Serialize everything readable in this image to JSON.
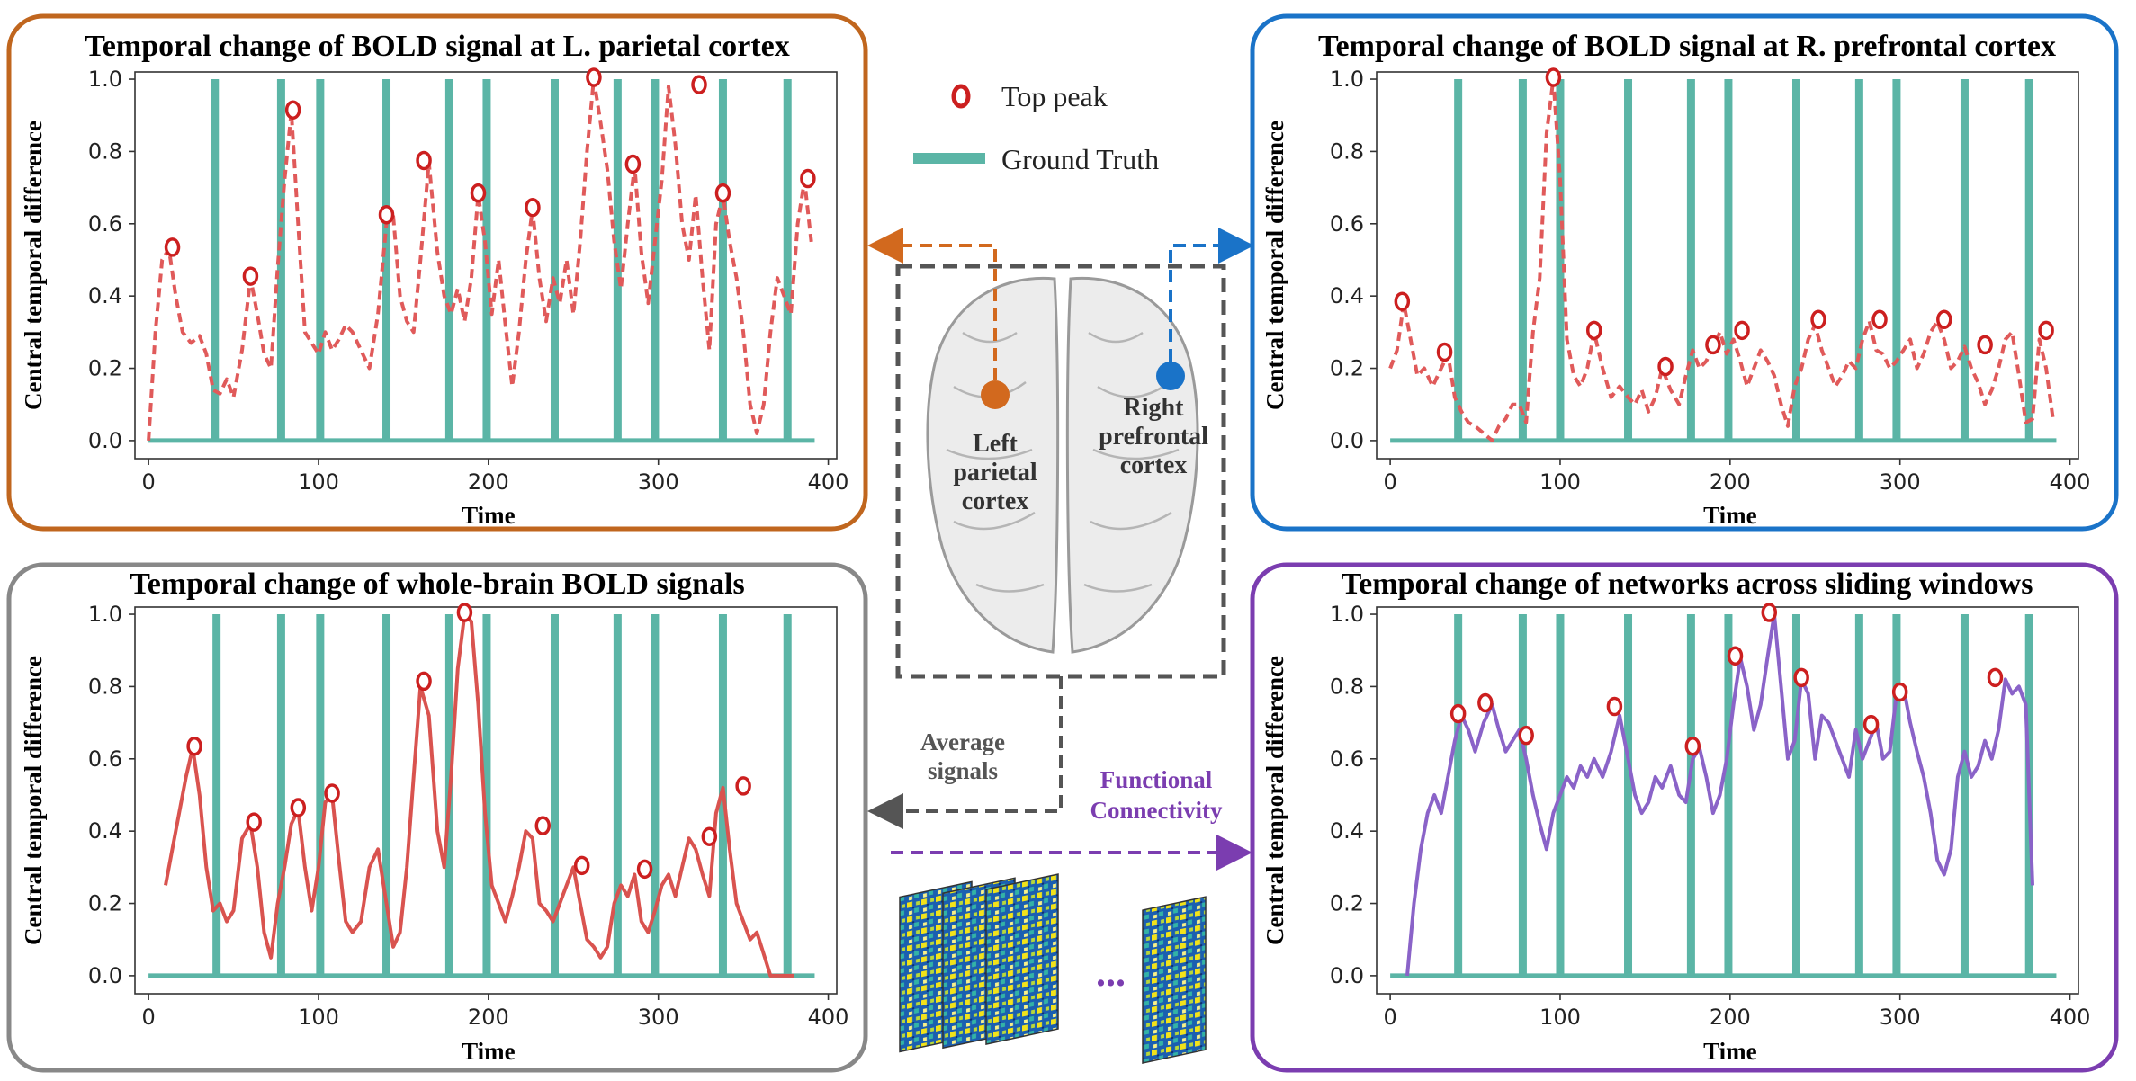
{
  "legend": {
    "peak_label": "Top peak",
    "gt_label": "Ground Truth",
    "colors": {
      "peak": "#cc1f1f",
      "gt": "#5bb5a6"
    }
  },
  "center": {
    "left_label": [
      "Left",
      "parietal",
      "cortex"
    ],
    "right_label": [
      "Right",
      "prefrontal",
      "cortex"
    ],
    "avg_label": [
      "Average",
      "signals"
    ],
    "fc_label": [
      "Functional",
      "Connectivity"
    ],
    "dots": "...",
    "colors": {
      "left": "#d2691e",
      "right": "#1a73c8",
      "avg": "#555555",
      "fc": "#7b3db0"
    }
  },
  "chart_data": [
    {
      "id": "tl",
      "type": "line",
      "title": "Temporal change of BOLD signal at L. parietal cortex",
      "xlabel": "Time",
      "ylabel": "Central temporal difference",
      "xlim": [
        -8,
        405
      ],
      "ylim": [
        -0.05,
        1.02
      ],
      "xticks": [
        0,
        100,
        200,
        300,
        400
      ],
      "yticks": [
        0.0,
        0.2,
        0.4,
        0.6,
        0.8,
        1.0
      ],
      "ground_truth": [
        39,
        78,
        101,
        140,
        177,
        199,
        239,
        276,
        298,
        338,
        376
      ],
      "gt_range": [
        0,
        392
      ],
      "line_style": "dashed",
      "line_color": "#e05a5a",
      "frame_color": "#c0661e",
      "series": {
        "x": [
          0,
          4,
          8,
          12,
          16,
          20,
          25,
          30,
          34,
          38,
          42,
          46,
          50,
          55,
          60,
          64,
          68,
          72,
          76,
          80,
          84,
          88,
          92,
          96,
          100,
          104,
          108,
          112,
          116,
          120,
          125,
          130,
          135,
          140,
          144,
          148,
          152,
          156,
          160,
          165,
          170,
          174,
          178,
          182,
          186,
          190,
          194,
          198,
          202,
          206,
          210,
          214,
          218,
          222,
          226,
          230,
          234,
          238,
          242,
          246,
          250,
          254,
          258,
          262,
          266,
          270,
          274,
          278,
          282,
          286,
          290,
          294,
          298,
          302,
          306,
          310,
          314,
          318,
          322,
          326,
          330,
          334,
          338,
          342,
          346,
          350,
          354,
          358,
          362,
          366,
          370,
          374,
          378,
          382,
          386,
          390
        ],
        "y": [
          0.0,
          0.3,
          0.5,
          0.53,
          0.4,
          0.3,
          0.27,
          0.29,
          0.24,
          0.14,
          0.13,
          0.17,
          0.12,
          0.25,
          0.45,
          0.35,
          0.24,
          0.2,
          0.48,
          0.72,
          0.91,
          0.6,
          0.3,
          0.27,
          0.24,
          0.3,
          0.25,
          0.28,
          0.32,
          0.3,
          0.25,
          0.2,
          0.35,
          0.6,
          0.62,
          0.4,
          0.33,
          0.3,
          0.5,
          0.77,
          0.52,
          0.4,
          0.35,
          0.42,
          0.33,
          0.45,
          0.68,
          0.55,
          0.35,
          0.5,
          0.32,
          0.15,
          0.3,
          0.5,
          0.64,
          0.45,
          0.33,
          0.45,
          0.38,
          0.5,
          0.35,
          0.55,
          0.8,
          1.0,
          0.88,
          0.75,
          0.55,
          0.42,
          0.6,
          0.76,
          0.52,
          0.38,
          0.55,
          0.72,
          0.98,
          0.82,
          0.6,
          0.5,
          0.68,
          0.45,
          0.25,
          0.6,
          0.68,
          0.55,
          0.45,
          0.3,
          0.1,
          0.02,
          0.1,
          0.3,
          0.45,
          0.4,
          0.35,
          0.6,
          0.72,
          0.55
        ]
      },
      "peaks": [
        [
          14,
          0.53
        ],
        [
          60,
          0.45
        ],
        [
          85,
          0.91
        ],
        [
          140,
          0.62
        ],
        [
          162,
          0.77
        ],
        [
          194,
          0.68
        ],
        [
          226,
          0.64
        ],
        [
          262,
          1.0
        ],
        [
          285,
          0.76
        ],
        [
          324,
          0.98
        ],
        [
          338,
          0.68
        ],
        [
          388,
          0.72
        ]
      ]
    },
    {
      "id": "tr",
      "type": "line",
      "title": "Temporal change of BOLD signal at R. prefrontal cortex",
      "xlabel": "Time",
      "ylabel": "Central temporal difference",
      "xlim": [
        -8,
        405
      ],
      "ylim": [
        -0.05,
        1.02
      ],
      "xticks": [
        0,
        100,
        200,
        300,
        400
      ],
      "yticks": [
        0.0,
        0.2,
        0.4,
        0.6,
        0.8,
        1.0
      ],
      "ground_truth": [
        40,
        78,
        100,
        140,
        177,
        199,
        239,
        276,
        298,
        338,
        376
      ],
      "gt_range": [
        0,
        392
      ],
      "line_style": "dashed",
      "line_color": "#e05a5a",
      "frame_color": "#1a73c8",
      "series": {
        "x": [
          0,
          4,
          8,
          12,
          16,
          20,
          25,
          30,
          34,
          38,
          42,
          46,
          50,
          55,
          60,
          64,
          68,
          72,
          76,
          80,
          84,
          88,
          92,
          96,
          100,
          104,
          108,
          112,
          116,
          120,
          125,
          130,
          135,
          140,
          144,
          148,
          152,
          156,
          160,
          165,
          170,
          174,
          178,
          182,
          186,
          190,
          194,
          198,
          202,
          206,
          210,
          214,
          218,
          222,
          226,
          230,
          234,
          238,
          242,
          246,
          250,
          254,
          258,
          262,
          266,
          270,
          274,
          278,
          282,
          286,
          290,
          294,
          298,
          302,
          306,
          310,
          314,
          318,
          322,
          326,
          330,
          334,
          338,
          342,
          346,
          350,
          354,
          358,
          362,
          366,
          370,
          374,
          378,
          382,
          386,
          390
        ],
        "y": [
          0.2,
          0.25,
          0.38,
          0.28,
          0.18,
          0.2,
          0.15,
          0.2,
          0.24,
          0.12,
          0.08,
          0.05,
          0.04,
          0.02,
          0.0,
          0.04,
          0.06,
          0.1,
          0.1,
          0.05,
          0.3,
          0.45,
          0.85,
          1.0,
          0.72,
          0.28,
          0.18,
          0.15,
          0.2,
          0.3,
          0.2,
          0.12,
          0.15,
          0.12,
          0.1,
          0.14,
          0.08,
          0.12,
          0.2,
          0.14,
          0.1,
          0.18,
          0.25,
          0.2,
          0.22,
          0.26,
          0.3,
          0.24,
          0.28,
          0.22,
          0.15,
          0.2,
          0.25,
          0.22,
          0.18,
          0.1,
          0.04,
          0.15,
          0.2,
          0.28,
          0.32,
          0.25,
          0.2,
          0.15,
          0.18,
          0.22,
          0.2,
          0.28,
          0.33,
          0.25,
          0.24,
          0.2,
          0.22,
          0.25,
          0.28,
          0.2,
          0.24,
          0.3,
          0.33,
          0.28,
          0.2,
          0.22,
          0.26,
          0.2,
          0.16,
          0.1,
          0.14,
          0.2,
          0.28,
          0.3,
          0.18,
          0.05,
          0.06,
          0.28,
          0.2,
          0.06
        ]
      },
      "peaks": [
        [
          7,
          0.38
        ],
        [
          32,
          0.24
        ],
        [
          96,
          1.0
        ],
        [
          120,
          0.3
        ],
        [
          162,
          0.2
        ],
        [
          190,
          0.26
        ],
        [
          207,
          0.3
        ],
        [
          252,
          0.33
        ],
        [
          288,
          0.33
        ],
        [
          326,
          0.33
        ],
        [
          350,
          0.26
        ],
        [
          386,
          0.3
        ]
      ]
    },
    {
      "id": "bl",
      "type": "line",
      "title": "Temporal change of whole-brain BOLD signals",
      "xlabel": "Time",
      "ylabel": "Central temporal difference",
      "xlim": [
        -8,
        405
      ],
      "ylim": [
        -0.05,
        1.02
      ],
      "xticks": [
        0,
        100,
        200,
        300,
        400
      ],
      "yticks": [
        0.0,
        0.2,
        0.4,
        0.6,
        0.8,
        1.0
      ],
      "ground_truth": [
        40,
        78,
        101,
        140,
        177,
        199,
        239,
        276,
        298,
        338,
        376
      ],
      "gt_range": [
        0,
        392
      ],
      "line_style": "solid",
      "line_color": "#d9534f",
      "frame_color": "#888888",
      "series": {
        "x": [
          10,
          14,
          18,
          22,
          26,
          30,
          34,
          38,
          42,
          46,
          50,
          55,
          60,
          64,
          68,
          72,
          76,
          80,
          84,
          88,
          92,
          96,
          100,
          104,
          108,
          112,
          116,
          120,
          125,
          130,
          135,
          140,
          144,
          148,
          152,
          156,
          160,
          165,
          170,
          174,
          178,
          182,
          186,
          190,
          194,
          198,
          202,
          206,
          210,
          214,
          218,
          222,
          226,
          230,
          234,
          238,
          242,
          246,
          250,
          254,
          258,
          262,
          266,
          270,
          274,
          278,
          282,
          286,
          290,
          294,
          298,
          302,
          306,
          310,
          314,
          318,
          322,
          326,
          330,
          334,
          338,
          342,
          346,
          350,
          354,
          358,
          362,
          366,
          370,
          374,
          378,
          380
        ],
        "y": [
          0.25,
          0.35,
          0.45,
          0.55,
          0.63,
          0.5,
          0.3,
          0.18,
          0.2,
          0.15,
          0.18,
          0.38,
          0.42,
          0.3,
          0.12,
          0.05,
          0.2,
          0.3,
          0.42,
          0.46,
          0.3,
          0.18,
          0.3,
          0.48,
          0.5,
          0.32,
          0.15,
          0.12,
          0.15,
          0.3,
          0.35,
          0.2,
          0.08,
          0.12,
          0.3,
          0.55,
          0.8,
          0.72,
          0.4,
          0.3,
          0.55,
          0.85,
          1.0,
          0.98,
          0.75,
          0.45,
          0.25,
          0.2,
          0.15,
          0.22,
          0.3,
          0.4,
          0.38,
          0.2,
          0.18,
          0.15,
          0.2,
          0.25,
          0.3,
          0.2,
          0.1,
          0.08,
          0.05,
          0.08,
          0.2,
          0.25,
          0.22,
          0.28,
          0.15,
          0.12,
          0.18,
          0.25,
          0.28,
          0.22,
          0.3,
          0.38,
          0.35,
          0.28,
          0.22,
          0.45,
          0.52,
          0.35,
          0.2,
          0.15,
          0.1,
          0.12,
          0.06,
          0.0,
          0.0,
          0.0,
          0.0,
          0.0
        ]
      },
      "peaks": [
        [
          27,
          0.63
        ],
        [
          62,
          0.42
        ],
        [
          88,
          0.46
        ],
        [
          108,
          0.5
        ],
        [
          162,
          0.81
        ],
        [
          186,
          1.0
        ],
        [
          232,
          0.41
        ],
        [
          255,
          0.3
        ],
        [
          292,
          0.29
        ],
        [
          330,
          0.38
        ],
        [
          350,
          0.52
        ]
      ]
    },
    {
      "id": "br",
      "type": "line",
      "title": "Temporal change of networks across sliding windows",
      "xlabel": "Time",
      "ylabel": "Central temporal difference",
      "xlim": [
        -8,
        405
      ],
      "ylim": [
        -0.05,
        1.02
      ],
      "xticks": [
        0,
        100,
        200,
        300,
        400
      ],
      "yticks": [
        0.0,
        0.2,
        0.4,
        0.6,
        0.8,
        1.0
      ],
      "ground_truth": [
        40,
        78,
        100,
        140,
        177,
        199,
        239,
        276,
        298,
        338,
        376
      ],
      "gt_range": [
        0,
        392
      ],
      "line_style": "solid",
      "line_color": "#8a63c8",
      "frame_color": "#7b3db0",
      "series": {
        "x": [
          10,
          14,
          18,
          22,
          26,
          30,
          34,
          38,
          42,
          46,
          50,
          55,
          60,
          64,
          68,
          72,
          76,
          80,
          84,
          88,
          92,
          96,
          100,
          104,
          108,
          112,
          116,
          120,
          125,
          130,
          135,
          140,
          144,
          148,
          152,
          156,
          160,
          165,
          170,
          174,
          178,
          182,
          186,
          190,
          194,
          198,
          202,
          206,
          210,
          214,
          218,
          222,
          226,
          230,
          234,
          238,
          242,
          246,
          250,
          254,
          258,
          262,
          266,
          270,
          274,
          278,
          282,
          286,
          290,
          294,
          298,
          302,
          306,
          310,
          314,
          318,
          322,
          326,
          330,
          334,
          338,
          342,
          346,
          350,
          354,
          358,
          362,
          366,
          370,
          374,
          378
        ],
        "y": [
          0.0,
          0.2,
          0.35,
          0.45,
          0.5,
          0.45,
          0.55,
          0.65,
          0.72,
          0.68,
          0.62,
          0.7,
          0.75,
          0.68,
          0.62,
          0.65,
          0.68,
          0.6,
          0.5,
          0.42,
          0.35,
          0.45,
          0.5,
          0.55,
          0.52,
          0.58,
          0.55,
          0.6,
          0.55,
          0.62,
          0.72,
          0.6,
          0.5,
          0.45,
          0.48,
          0.55,
          0.52,
          0.58,
          0.5,
          0.48,
          0.6,
          0.63,
          0.55,
          0.45,
          0.5,
          0.6,
          0.75,
          0.88,
          0.8,
          0.68,
          0.75,
          0.88,
          1.0,
          0.8,
          0.6,
          0.65,
          0.82,
          0.78,
          0.6,
          0.72,
          0.7,
          0.65,
          0.6,
          0.55,
          0.68,
          0.6,
          0.65,
          0.7,
          0.6,
          0.62,
          0.78,
          0.8,
          0.7,
          0.62,
          0.55,
          0.45,
          0.32,
          0.28,
          0.35,
          0.55,
          0.62,
          0.55,
          0.58,
          0.65,
          0.6,
          0.68,
          0.82,
          0.78,
          0.8,
          0.75,
          0.25
        ]
      },
      "peaks": [
        [
          40,
          0.72
        ],
        [
          56,
          0.75
        ],
        [
          80,
          0.66
        ],
        [
          132,
          0.74
        ],
        [
          178,
          0.63
        ],
        [
          203,
          0.88
        ],
        [
          223,
          1.0
        ],
        [
          242,
          0.82
        ],
        [
          283,
          0.69
        ],
        [
          300,
          0.78
        ],
        [
          356,
          0.82
        ]
      ]
    }
  ]
}
